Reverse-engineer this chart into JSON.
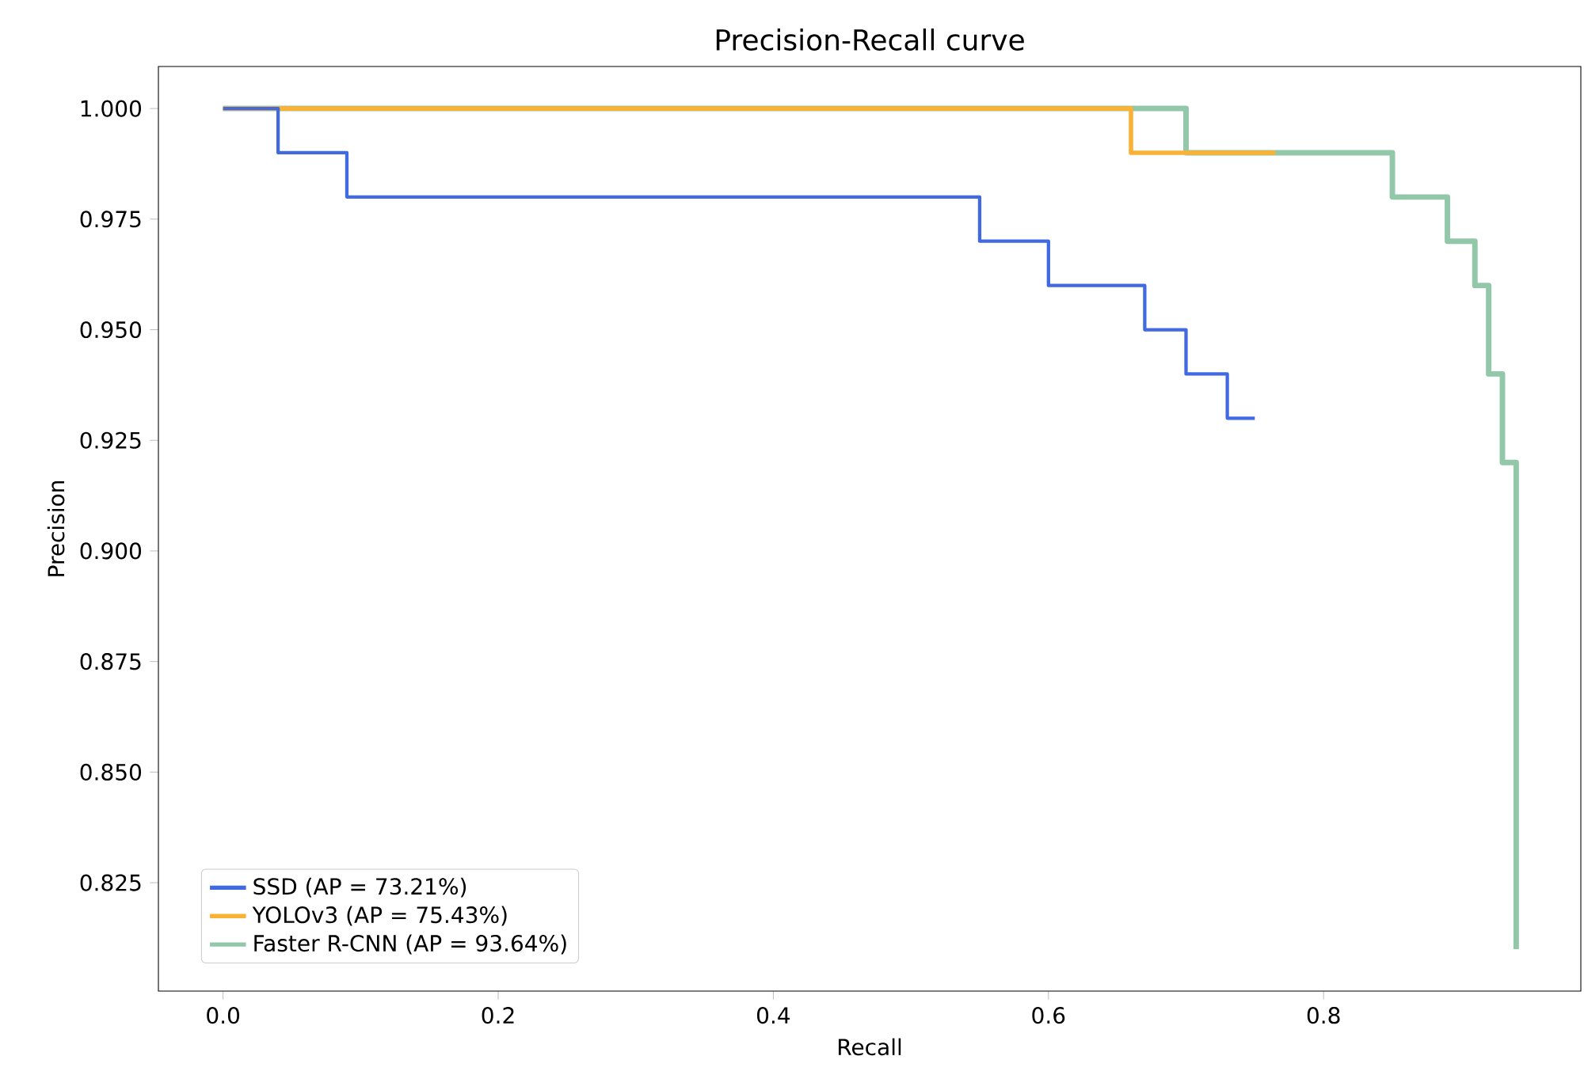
{
  "chart_data": {
    "type": "step",
    "title": "Precision-Recall curve",
    "xlabel": "Recall",
    "ylabel": "Precision",
    "xlim": [
      -0.047,
      0.987
    ],
    "ylim": [
      0.8005,
      1.0095
    ],
    "xticks": [
      {
        "value": 0,
        "label": "0.0"
      },
      0.2,
      0.4,
      0.6,
      0.8
    ],
    "yticks": [
      {
        "value": 0.825,
        "label": "0.825"
      },
      {
        "value": 0.85,
        "label": "0.850"
      },
      {
        "value": 0.875,
        "label": "0.875"
      },
      {
        "value": 0.9,
        "label": "0.900"
      },
      {
        "value": 0.925,
        "label": "0.925"
      },
      {
        "value": 0.95,
        "label": "0.950"
      },
      {
        "value": 0.975,
        "label": "0.975"
      },
      {
        "value": 1.0,
        "label": "1.000"
      }
    ],
    "grid": false,
    "legend": "bottom left",
    "marker": "none",
    "line_style": "solid",
    "series": [
      {
        "name": "SSD (AP = 73.21%)",
        "color": "#4169e1",
        "x": [
          0,
          0.04,
          0.09,
          0.55,
          0.6,
          0.67,
          0.7,
          0.73,
          0.75
        ],
        "values": [
          1.0,
          0.99,
          0.98,
          0.97,
          0.96,
          0.95,
          0.94,
          0.93,
          0.93
        ]
      },
      {
        "name": "YOLOv3 (AP = 75.43%)",
        "color": "#f9b233",
        "x": [
          0,
          0.66,
          0.765
        ],
        "values": [
          1.0,
          0.99,
          0.99
        ]
      },
      {
        "name": "Faster R-CNN (AP = 93.64%)",
        "color": "#93c7a9",
        "x": [
          0,
          0.7,
          0.85,
          0.89,
          0.91,
          0.92,
          0.93,
          0.94
        ],
        "values": [
          1.0,
          0.99,
          0.98,
          0.97,
          0.96,
          0.94,
          0.92,
          0.81
        ]
      }
    ]
  }
}
